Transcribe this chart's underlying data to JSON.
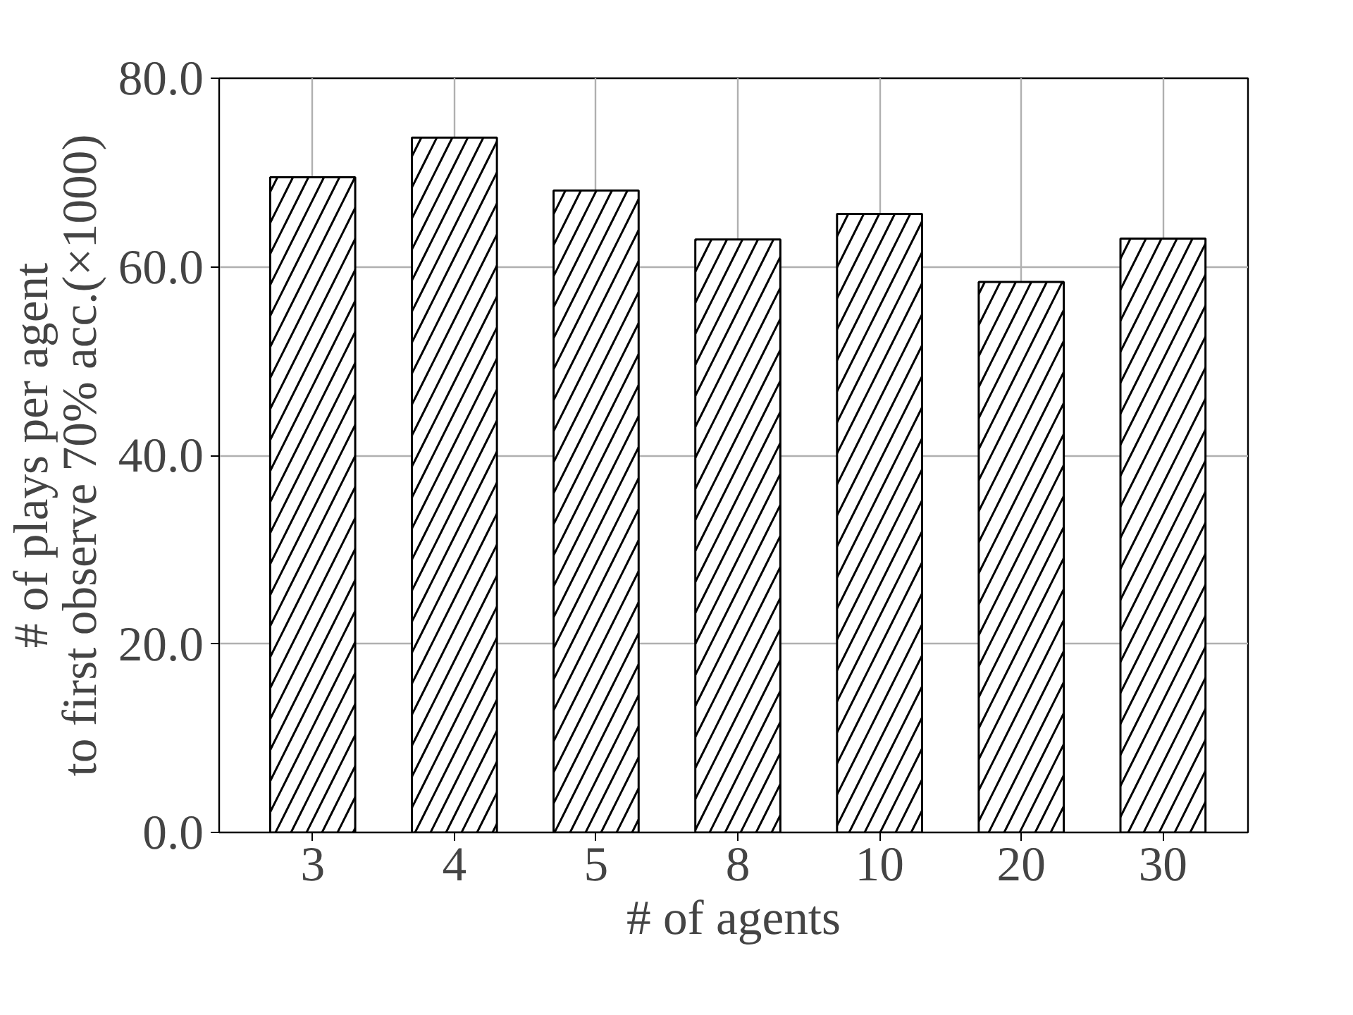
{
  "chart_data": {
    "type": "bar",
    "categories": [
      "3",
      "4",
      "5",
      "8",
      "10",
      "20",
      "30"
    ],
    "values": [
      69.5,
      73.7,
      68.1,
      62.9,
      65.6,
      58.4,
      63.0
    ],
    "color": "#ffffff",
    "xlabel": "# of agents",
    "ylabel": "# of plays per agent\nto first observe 70% acc.(×1000)",
    "ylim": [
      0,
      80
    ],
    "yticks": [
      {
        "value": 0,
        "label": "0.0"
      },
      {
        "value": 20,
        "label": "20.0"
      },
      {
        "value": 40,
        "label": "40.0"
      },
      {
        "value": 60,
        "label": "60.0"
      },
      {
        "value": 80,
        "label": "80.0"
      }
    ],
    "grid": true
  }
}
